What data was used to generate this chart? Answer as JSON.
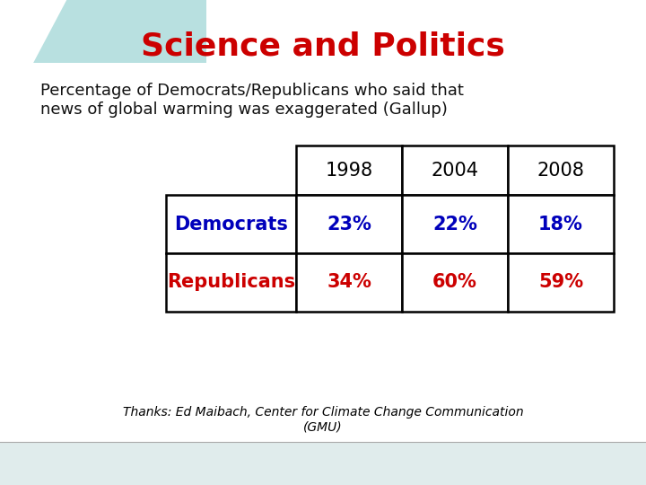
{
  "title": "Science and Politics",
  "subtitle": "Percentage of Democrats/Republicans who said that\nnews of global warming was exaggerated (Gallup)",
  "years": [
    "1998",
    "2004",
    "2008"
  ],
  "rows": [
    {
      "label": "Democrats",
      "values": [
        "23%",
        "22%",
        "18%"
      ],
      "label_color": "#0000BB",
      "value_color": "#0000BB"
    },
    {
      "label": "Republicans",
      "values": [
        "34%",
        "60%",
        "59%"
      ],
      "label_color": "#CC0000",
      "value_color": "#CC0000"
    }
  ],
  "footnote": "Thanks: Ed Maibach, Center for Climate Change Communication\n(GMU)",
  "title_color": "#CC0000",
  "subtitle_color": "#111111",
  "bg_color": "#FFFFFF",
  "border_color": "#000000",
  "title_fontsize": 26,
  "subtitle_fontsize": 13,
  "table_fontsize": 15,
  "footnote_fontsize": 10,
  "year_fontsize": 15,
  "teal_light": "#B8E0E0",
  "teal_mid": "#7FCFCF",
  "bottom_bar_color": "#E0ECEC",
  "bottom_line_color": "#AAAAAA"
}
